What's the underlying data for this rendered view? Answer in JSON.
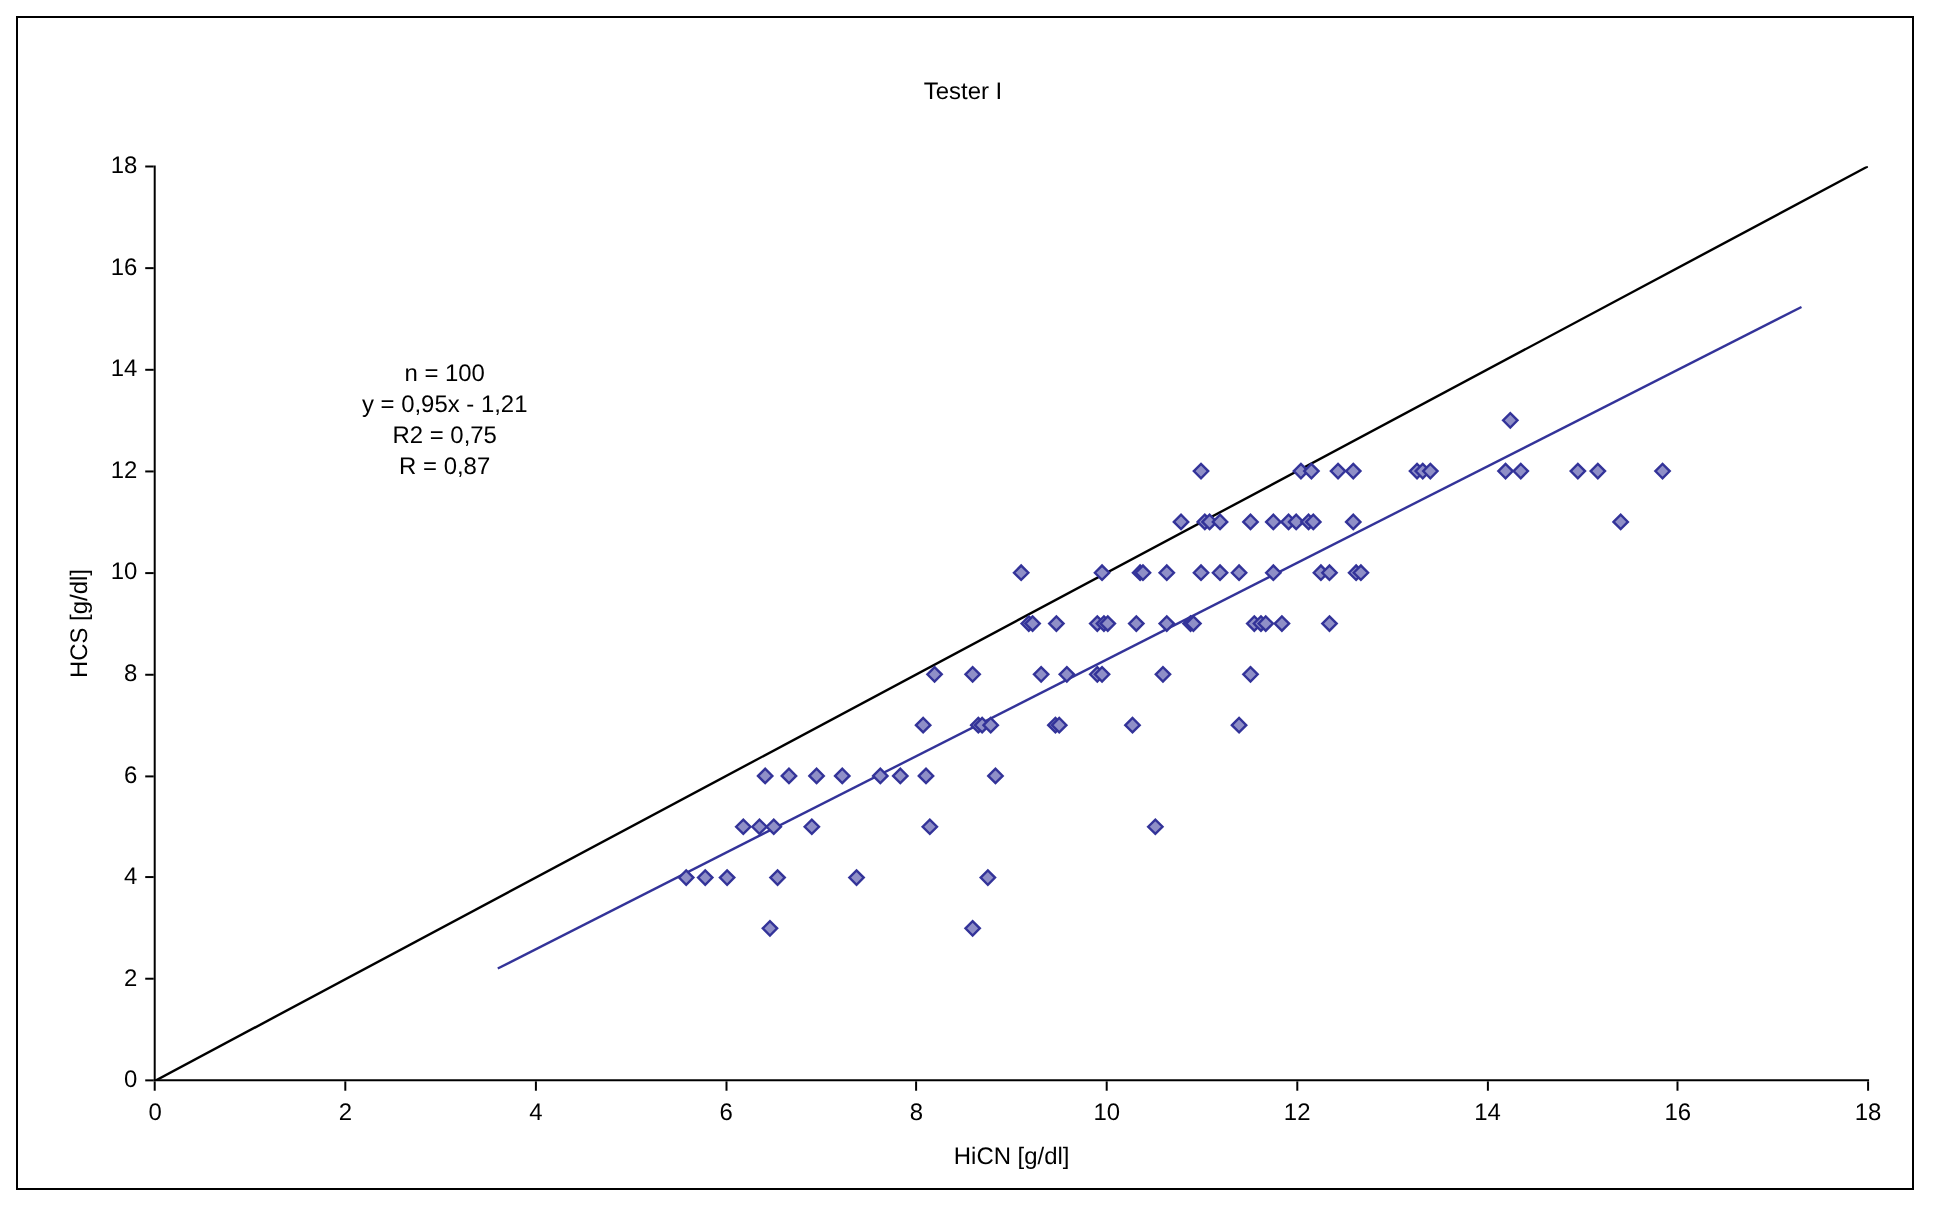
{
  "chart_data": {
    "type": "scatter",
    "title": "Tester I",
    "xlabel": "HiCN [g/dl]",
    "ylabel": "HCS [g/dl]",
    "xlim": [
      0,
      18
    ],
    "xticks": [
      0,
      2,
      4,
      6,
      8,
      10,
      12,
      14,
      16,
      18
    ],
    "ylim": [
      0,
      18
    ],
    "yticks": [
      0,
      2,
      4,
      6,
      8,
      10,
      12,
      14,
      16,
      18
    ],
    "grid": false,
    "legend": false,
    "marker": "diamond",
    "annotations": [
      "n = 100",
      "y = 0,95x - 1,21",
      "R2 = 0,75",
      "R = 0,87"
    ],
    "series": [
      {
        "type": "scatter",
        "color": "#333399",
        "x": [
          10.99,
          12.04,
          12.15,
          12.43,
          12.59,
          13.26,
          13.32,
          13.4,
          14.19,
          14.35,
          14.95,
          15.16,
          15.84,
          14.24,
          10.78,
          11.03,
          11.08,
          11.19,
          11.51,
          11.75,
          11.91,
          11.99,
          12.12,
          12.17,
          12.59,
          15.4,
          9.1,
          9.95,
          10.35,
          10.38,
          10.63,
          10.99,
          11.19,
          11.39,
          11.75,
          12.25,
          12.34,
          12.62,
          12.67,
          9.18,
          9.22,
          9.47,
          9.9,
          9.97,
          10.01,
          10.31,
          10.63,
          10.88,
          10.91,
          11.55,
          11.62,
          11.67,
          11.84,
          12.34,
          8.19,
          8.59,
          9.31,
          9.58,
          9.9,
          9.95,
          10.59,
          11.51,
          8.07,
          8.65,
          8.69,
          8.78,
          9.46,
          9.5,
          10.27,
          11.39,
          6.41,
          6.66,
          6.95,
          7.22,
          7.62,
          7.83,
          8.1,
          8.83,
          6.18,
          6.35,
          6.5,
          6.9,
          8.14,
          10.51,
          5.58,
          5.78,
          6.01,
          6.54,
          7.37,
          8.75,
          6.46,
          8.59
        ],
        "values": [
          12,
          12,
          12,
          12,
          12,
          12,
          12,
          12,
          12,
          12,
          12,
          12,
          12,
          13,
          11,
          11,
          11,
          11,
          11,
          11,
          11,
          11,
          11,
          11,
          11,
          11,
          10,
          10,
          10,
          10,
          10,
          10,
          10,
          10,
          10,
          10,
          10,
          10,
          10,
          9,
          9,
          9,
          9,
          9,
          9,
          9,
          9,
          9,
          9,
          9,
          9,
          9,
          9,
          9,
          8,
          8,
          8,
          8,
          8,
          8,
          8,
          8,
          7,
          7,
          7,
          7,
          7,
          7,
          7,
          7,
          6,
          6,
          6,
          6,
          6,
          6,
          6,
          6,
          5,
          5,
          5,
          5,
          5,
          5,
          4,
          4,
          4,
          4,
          4,
          4,
          3,
          3
        ]
      },
      {
        "type": "line",
        "color": "#000000",
        "marker": "none",
        "x": [
          0,
          18
        ],
        "values": [
          0,
          18
        ]
      },
      {
        "type": "line",
        "color": "#333399",
        "marker": "none",
        "x": [
          3.6,
          17.3
        ],
        "values": [
          2.21,
          15.23
        ]
      }
    ]
  }
}
